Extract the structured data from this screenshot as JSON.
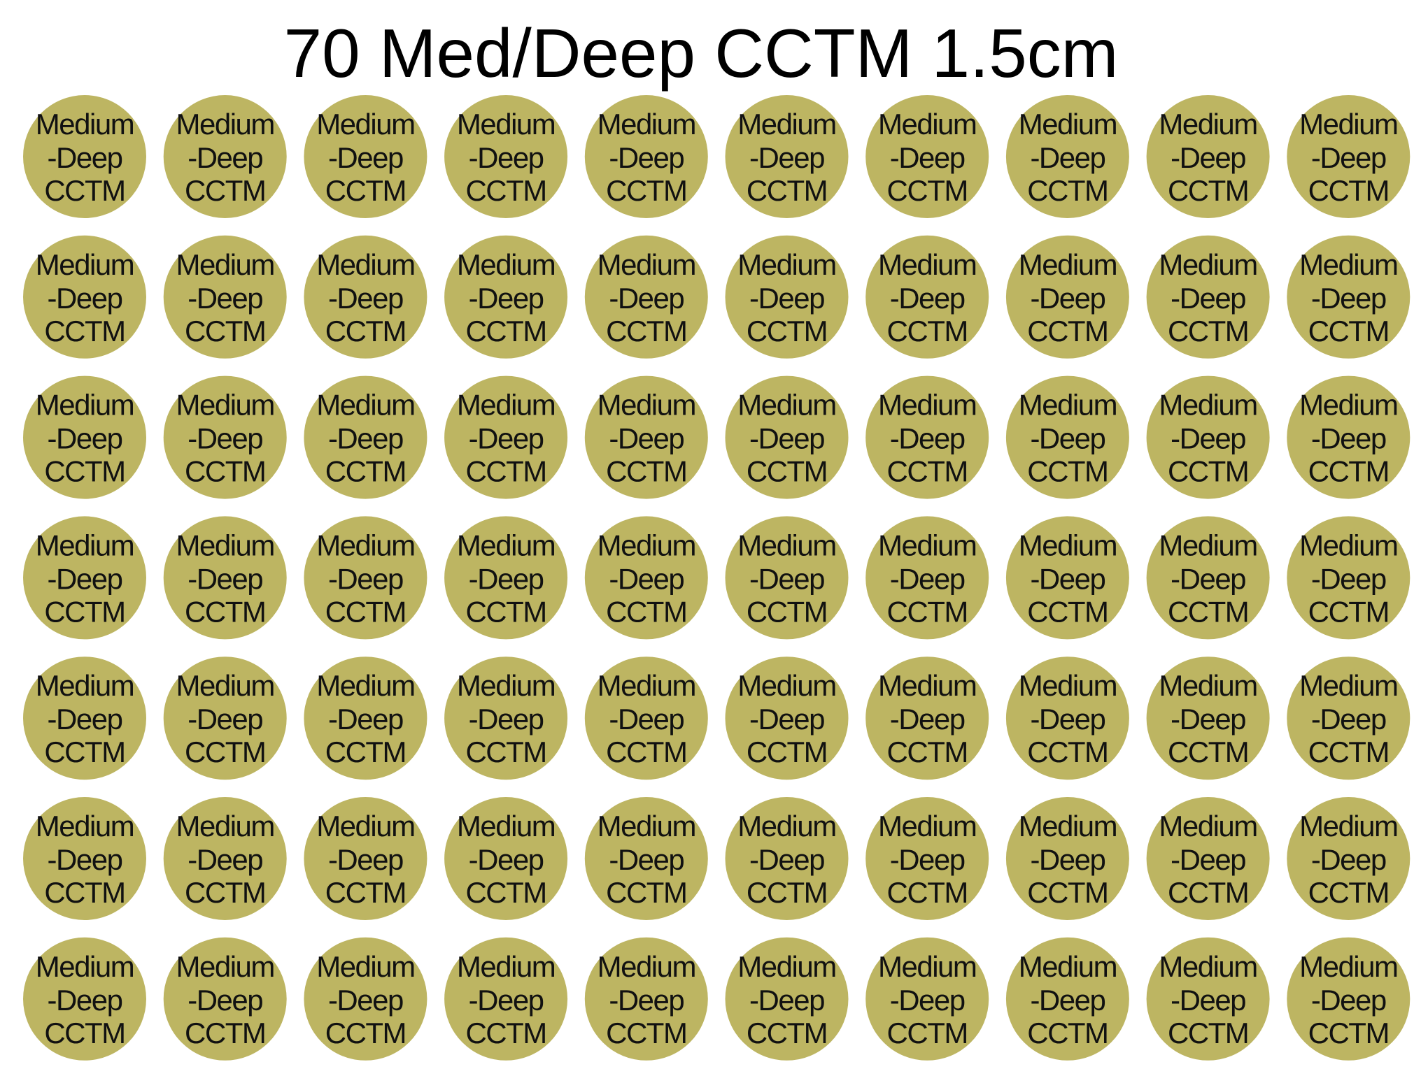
{
  "title": "70 Med/Deep CCTM 1.5cm",
  "rows": [
    [
      {
        "lines": [
          "Medium",
          "-Deep",
          "CCTM"
        ]
      },
      {
        "lines": [
          "Medium",
          "-Deep",
          "CCTM"
        ]
      },
      {
        "lines": [
          "Medium",
          "-Deep",
          "CCTM"
        ]
      },
      {
        "lines": [
          "Medium",
          "-Deep",
          "CCTM"
        ]
      },
      {
        "lines": [
          "Medium",
          "-Deep",
          "CCTM"
        ]
      },
      {
        "lines": [
          "Medium",
          "-Deep",
          "CCTM"
        ]
      },
      {
        "lines": [
          "Medium",
          "-Deep",
          "CCTM"
        ]
      },
      {
        "lines": [
          "Medium",
          "-Deep",
          "CCTM"
        ]
      },
      {
        "lines": [
          "Medium",
          "-Deep",
          "CCTM"
        ]
      },
      {
        "lines": [
          "Medium",
          "-Deep",
          "CCTM"
        ]
      }
    ],
    [
      {
        "lines": [
          "Medium",
          "-Deep",
          "CCTM"
        ]
      },
      {
        "lines": [
          "Medium",
          "-Deep",
          "CCTM"
        ]
      },
      {
        "lines": [
          "Medium",
          "-Deep",
          "CCTM"
        ]
      },
      {
        "lines": [
          "Medium",
          "-Deep",
          "CCTM"
        ]
      },
      {
        "lines": [
          "Medium",
          "-Deep",
          "CCTM"
        ]
      },
      {
        "lines": [
          "Medium",
          "-Deep",
          "CCTM"
        ]
      },
      {
        "lines": [
          "Medium",
          "-Deep",
          "CCTM"
        ]
      },
      {
        "lines": [
          "Medium",
          "-Deep",
          "CCTM"
        ]
      },
      {
        "lines": [
          "Medium",
          "-Deep",
          "CCTM"
        ]
      },
      {
        "lines": [
          "Medium",
          "-Deep",
          "CCTM"
        ]
      }
    ],
    [
      {
        "lines": [
          "Medium",
          "-Deep",
          "CCTM"
        ]
      },
      {
        "lines": [
          "Medium",
          "-Deep",
          "CCTM"
        ]
      },
      {
        "lines": [
          "Medium",
          "-Deep",
          "CCTM"
        ]
      },
      {
        "lines": [
          "Medium",
          "-Deep",
          "CCTM"
        ]
      },
      {
        "lines": [
          "Medium",
          "-Deep",
          "CCTM"
        ]
      },
      {
        "lines": [
          "Medium",
          "-Deep",
          "CCTM"
        ]
      },
      {
        "lines": [
          "Medium",
          "-Deep",
          "CCTM"
        ]
      },
      {
        "lines": [
          "Medium",
          "-Deep",
          "CCTM"
        ]
      },
      {
        "lines": [
          "Medium",
          "-Deep",
          "CCTM"
        ]
      },
      {
        "lines": [
          "Medium",
          "-Deep",
          "CCTM"
        ]
      }
    ],
    [
      {
        "lines": [
          "Medium",
          "-Deep",
          "CCTM"
        ]
      },
      {
        "lines": [
          "Medium",
          "-Deep",
          "CCTM"
        ]
      },
      {
        "lines": [
          "Medium",
          "-Deep",
          "CCTM"
        ]
      },
      {
        "lines": [
          "Medium",
          "-Deep",
          "CCTM"
        ]
      },
      {
        "lines": [
          "Medium",
          "-Deep",
          "CCTM"
        ]
      },
      {
        "lines": [
          "Medium",
          "-Deep",
          "CCTM"
        ]
      },
      {
        "lines": [
          "Medium",
          "-Deep",
          "CCTM"
        ]
      },
      {
        "lines": [
          "Medium",
          "-Deep",
          "CCTM"
        ]
      },
      {
        "lines": [
          "Medium",
          "-Deep",
          "CCTM"
        ]
      },
      {
        "lines": [
          "Medium",
          "-Deep",
          "CCTM"
        ]
      }
    ],
    [
      {
        "lines": [
          "Medium",
          "-Deep",
          "CCTM"
        ]
      },
      {
        "lines": [
          "Medium",
          "-Deep",
          "CCTM"
        ]
      },
      {
        "lines": [
          "Medium",
          "-Deep",
          "CCTM"
        ]
      },
      {
        "lines": [
          "Medium",
          "-Deep",
          "CCTM"
        ]
      },
      {
        "lines": [
          "Medium",
          "-Deep",
          "CCTM"
        ]
      },
      {
        "lines": [
          "Medium",
          "-Deep",
          "CCTM"
        ]
      },
      {
        "lines": [
          "Medium",
          "-Deep",
          "CCTM"
        ]
      },
      {
        "lines": [
          "Medium",
          "-Deep",
          "CCTM"
        ]
      },
      {
        "lines": [
          "Medium",
          "-Deep",
          "CCTM"
        ]
      },
      {
        "lines": [
          "Medium",
          "-Deep",
          "CCTM"
        ]
      }
    ],
    [
      {
        "lines": [
          "Medium",
          "-Deep",
          "CCTM"
        ]
      },
      {
        "lines": [
          "Medium",
          "-Deep",
          "CCTM"
        ]
      },
      {
        "lines": [
          "Medium",
          "-Deep",
          "CCTM"
        ]
      },
      {
        "lines": [
          "Medium",
          "-Deep",
          "CCTM"
        ]
      },
      {
        "lines": [
          "Medium",
          "-Deep",
          "CCTM"
        ]
      },
      {
        "lines": [
          "Medium",
          "-Deep",
          "CCTM"
        ]
      },
      {
        "lines": [
          "Medium",
          "-Deep",
          "CCTM"
        ]
      },
      {
        "lines": [
          "Medium",
          "-Deep",
          "CCTM"
        ]
      },
      {
        "lines": [
          "Medium",
          "-Deep",
          "CCTM"
        ]
      },
      {
        "lines": [
          "Medium",
          "-Deep",
          "CCTM"
        ]
      }
    ],
    [
      {
        "lines": [
          "Medium",
          "-Deep",
          "CCTM"
        ]
      },
      {
        "lines": [
          "Medium",
          "-Deep",
          "CCTM"
        ]
      },
      {
        "lines": [
          "Medium",
          "-Deep",
          "CCTM"
        ]
      },
      {
        "lines": [
          "Medium",
          "-Deep",
          "CCTM"
        ]
      },
      {
        "lines": [
          "Medium",
          "-Deep",
          "CCTM"
        ]
      },
      {
        "lines": [
          "Medium",
          "-Deep",
          "CCTM"
        ]
      },
      {
        "lines": [
          "Medium",
          "-Deep",
          "CCTM"
        ]
      },
      {
        "lines": [
          "Medium",
          "-Deep",
          "CCTM"
        ]
      },
      {
        "lines": [
          "Medium",
          "-Deep",
          "CCTM"
        ]
      },
      {
        "lines": [
          "Medium",
          "-Deep",
          "CCTM"
        ]
      }
    ]
  ]
}
